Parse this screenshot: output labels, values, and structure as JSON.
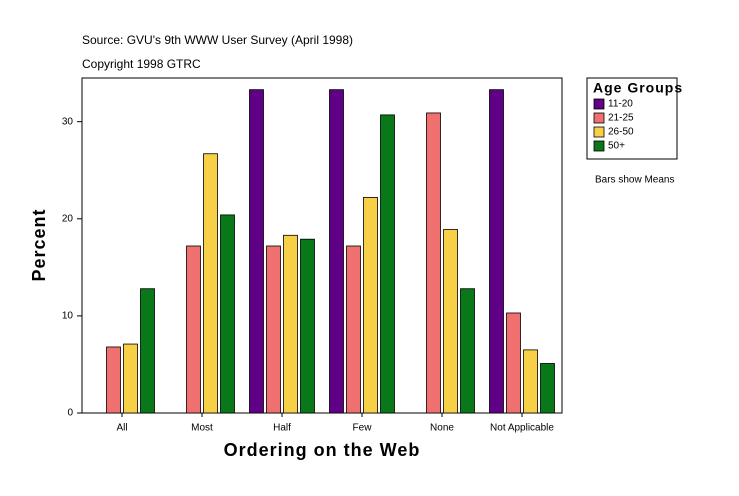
{
  "chart_data": {
    "type": "bar",
    "title": "Source: GVU's 9th WWW User Survey (April 1998)",
    "subtitle": "Copyright 1998 GTRC",
    "x_label": "Ordering on the Web",
    "y_label": "Percent",
    "annotation": "Bars show Means",
    "legend_title": "Age Groups",
    "legend": "right",
    "categories": [
      "All",
      "Most",
      "Half",
      "Few",
      "None",
      "Not Applicable"
    ],
    "series": [
      {
        "name": "11-20",
        "color": "#5f0087",
        "values": [
          null,
          null,
          33.3,
          33.3,
          null,
          33.3
        ]
      },
      {
        "name": "21-25",
        "color": "#f07070",
        "values": [
          6.8,
          17.2,
          17.2,
          17.2,
          30.9,
          10.3
        ]
      },
      {
        "name": "26-50",
        "color": "#f8d048",
        "values": [
          7.1,
          26.7,
          18.3,
          22.2,
          18.9,
          6.5
        ]
      },
      {
        "name": "50+",
        "color": "#087818",
        "values": [
          12.8,
          20.4,
          17.9,
          30.7,
          12.8,
          5.1
        ]
      }
    ],
    "ylim": [
      0,
      34.5
    ],
    "yticks": [
      0,
      10,
      20,
      30
    ],
    "grid": false
  }
}
